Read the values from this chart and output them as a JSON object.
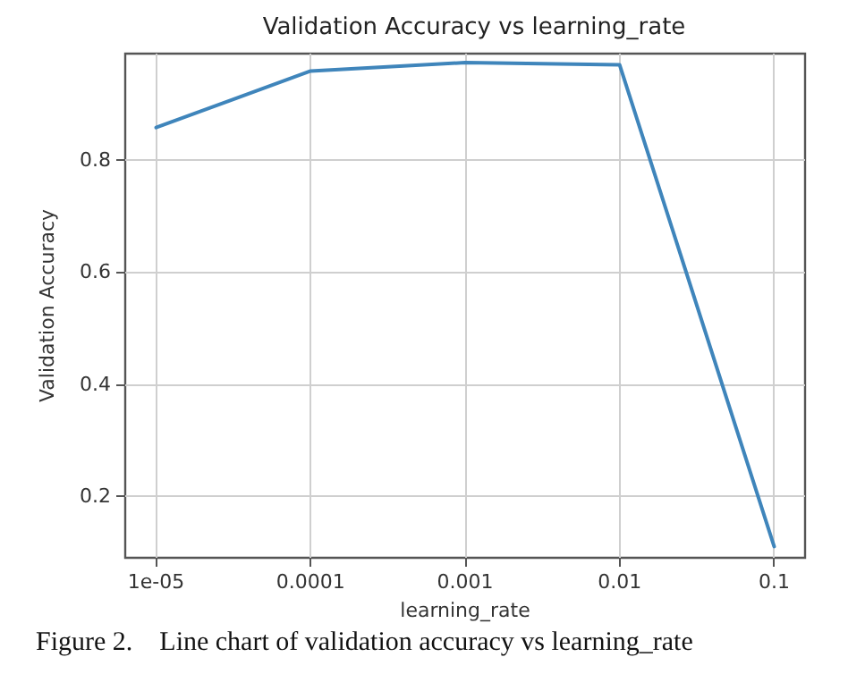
{
  "chart_data": {
    "type": "line",
    "title": "Validation Accuracy vs learning_rate",
    "xlabel": "learning_rate",
    "ylabel": "Validation Accuracy",
    "categories": [
      "1e-05",
      "0.0001",
      "0.001",
      "0.01",
      "0.1"
    ],
    "series": [
      {
        "color": "#3f85bb",
        "values": [
          0.858,
          0.959,
          0.974,
          0.97,
          0.11
        ]
      }
    ],
    "ylim": [
      0.09,
      0.99
    ],
    "yticks": [
      0.2,
      0.4,
      0.6,
      0.8
    ],
    "grid": true,
    "marker": "none",
    "line_style": "solid",
    "annotations": [
      "Figure 2.    Line chart of validation accuracy vs learning_rate"
    ]
  }
}
